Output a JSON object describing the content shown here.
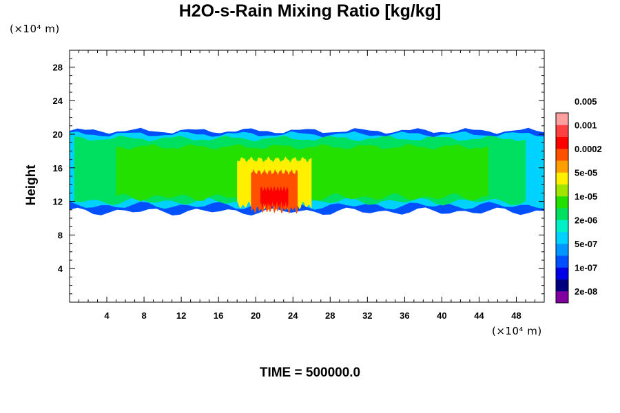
{
  "title": "H2O-s-Rain Mixing Ratio [kg/kg]",
  "y_unit": "(×10⁴ m)",
  "x_unit": "(×10⁴ m)",
  "footer": "TIME = 500000.0",
  "chart_data": {
    "type": "heatmap",
    "title": "H2O-s-Rain Mixing Ratio [kg/kg]",
    "ylabel": "Height",
    "xlabel": "",
    "x_unit": "(×10⁴ m)",
    "y_unit": "(×10⁴ m)",
    "xlim": [
      0,
      51
    ],
    "ylim": [
      0,
      30
    ],
    "xticks": [
      4,
      8,
      12,
      16,
      20,
      24,
      28,
      32,
      36,
      40,
      44,
      48
    ],
    "yticks": [
      4,
      8,
      12,
      16,
      20,
      24,
      28
    ],
    "grid": false,
    "colorbar": {
      "placement": "right",
      "colors": [
        "#8000a0",
        "#00007e",
        "#0000e6",
        "#0050ff",
        "#0096ff",
        "#00d2ff",
        "#00f0c8",
        "#00e060",
        "#24e000",
        "#a0e600",
        "#fff000",
        "#ffa000",
        "#ff5000",
        "#ff0000",
        "#ff4040",
        "#ffa0a0"
      ],
      "labels": [
        "2e-08",
        "1e-07",
        "5e-07",
        "2e-06",
        "1e-05",
        "5e-05",
        "0.0002",
        "0.001",
        "0.005"
      ]
    },
    "field_layers": [
      {
        "level": 3,
        "x_range": [
          0,
          51
        ],
        "y_range": [
          10.8,
          20.4
        ]
      },
      {
        "level": 5,
        "x_range": [
          0,
          51
        ],
        "y_range": [
          11.5,
          20.0
        ]
      },
      {
        "level": 7,
        "x_range": [
          0.5,
          49
        ],
        "y_range": [
          12.0,
          19.5
        ]
      },
      {
        "level": 8,
        "x_range": [
          5,
          45
        ],
        "y_range": [
          12.5,
          18.5
        ]
      },
      {
        "level": 10,
        "x_range": [
          18,
          26
        ],
        "y_range": [
          11.5,
          17.0
        ]
      },
      {
        "level": 12,
        "x_range": [
          19.5,
          24.5
        ],
        "y_range": [
          11.0,
          15.5
        ]
      },
      {
        "level": 13,
        "x_range": [
          20.5,
          23.5
        ],
        "y_range": [
          11.5,
          13.5
        ]
      }
    ]
  },
  "colors": {
    "background": "#ffffff",
    "axes": "#000000"
  }
}
